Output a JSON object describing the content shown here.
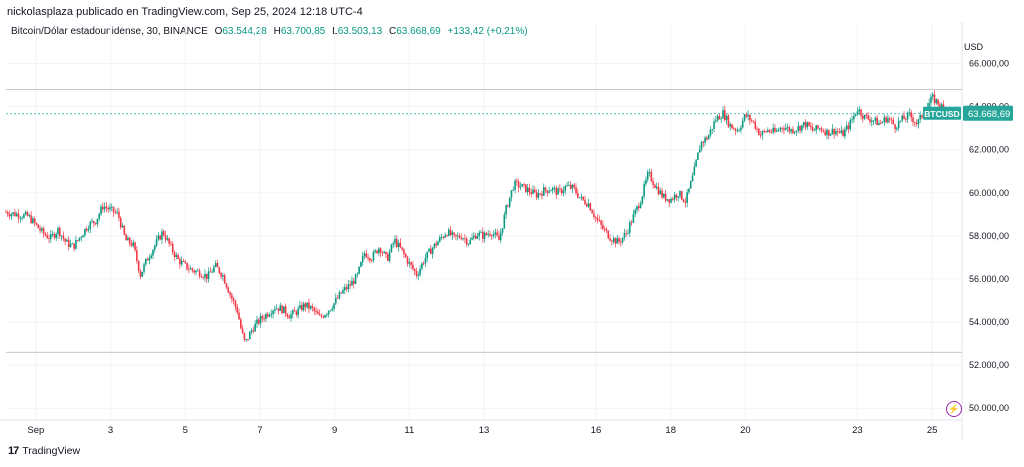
{
  "header": {
    "published": "nickolasplaza publicado en TradingView.com, Sep 25, 2024 12:18 UTC-4"
  },
  "legend": {
    "symbol": "Bitcoin/Dólar estadounidense, 30, BINANCE",
    "o_label": "O",
    "o_value": "63.544,28",
    "h_label": "H",
    "h_value": "63.700,85",
    "l_label": "L",
    "l_value": "63.503,13",
    "c_label": "C",
    "c_value": "63.668,69",
    "change": "+133,42 (+0,21%)"
  },
  "currency": "USD",
  "price_tag": {
    "symbol": "BTCUSD",
    "value": "63.668,69"
  },
  "footer": {
    "logo": "17",
    "brand": "TradingView"
  },
  "icons": {
    "bolt": "lightning-icon"
  },
  "colors": {
    "up": "#089981",
    "down": "#f23645",
    "accent": "#26a69a",
    "event": "#9c27b0"
  },
  "chart_data": {
    "type": "candlestick",
    "y_ticks": [
      50000,
      52000,
      54000,
      56000,
      58000,
      60000,
      62000,
      64000,
      66000
    ],
    "y_tick_labels": [
      "50.000,00",
      "52.000,00",
      "54.000,00",
      "56.000,00",
      "58.000,00",
      "60.000,00",
      "62.000,00",
      "64.000,00",
      "66.000,00"
    ],
    "ylim": [
      49500,
      67000
    ],
    "x_tick_labels": [
      "Sep",
      "3",
      "5",
      "7",
      "9",
      "11",
      "13",
      "16",
      "18",
      "20",
      "23",
      "25"
    ],
    "x_tick_days": [
      1,
      3,
      5,
      7,
      9,
      11,
      13,
      16,
      18,
      20,
      23,
      25
    ],
    "x_range_days": [
      0.2,
      25.8
    ],
    "hlines": [
      64800,
      63668.69,
      52600
    ],
    "close_series": [
      [
        0.2,
        59100
      ],
      [
        0.5,
        59000
      ],
      [
        0.8,
        58900
      ],
      [
        1.0,
        58500
      ],
      [
        1.2,
        58100
      ],
      [
        1.4,
        57900
      ],
      [
        1.6,
        58300
      ],
      [
        1.8,
        57700
      ],
      [
        2.0,
        57500
      ],
      [
        2.2,
        58000
      ],
      [
        2.4,
        58500
      ],
      [
        2.6,
        58700
      ],
      [
        2.8,
        59400
      ],
      [
        3.0,
        59200
      ],
      [
        3.2,
        59000
      ],
      [
        3.4,
        57800
      ],
      [
        3.6,
        57600
      ],
      [
        3.8,
        56200
      ],
      [
        4.0,
        57000
      ],
      [
        4.2,
        57600
      ],
      [
        4.4,
        58200
      ],
      [
        4.6,
        57500
      ],
      [
        4.8,
        56900
      ],
      [
        5.0,
        56600
      ],
      [
        5.2,
        56400
      ],
      [
        5.4,
        56300
      ],
      [
        5.6,
        56100
      ],
      [
        5.8,
        56600
      ],
      [
        6.0,
        56200
      ],
      [
        6.2,
        55300
      ],
      [
        6.4,
        54500
      ],
      [
        6.5,
        53600
      ],
      [
        6.6,
        53000
      ],
      [
        6.8,
        53700
      ],
      [
        7.0,
        54100
      ],
      [
        7.2,
        54400
      ],
      [
        7.4,
        54700
      ],
      [
        7.6,
        54600
      ],
      [
        7.8,
        54300
      ],
      [
        8.0,
        54500
      ],
      [
        8.2,
        54800
      ],
      [
        8.4,
        54600
      ],
      [
        8.6,
        54200
      ],
      [
        8.8,
        54500
      ],
      [
        9.0,
        54900
      ],
      [
        9.2,
        55400
      ],
      [
        9.4,
        55700
      ],
      [
        9.6,
        56100
      ],
      [
        9.8,
        57200
      ],
      [
        10.0,
        57000
      ],
      [
        10.2,
        57500
      ],
      [
        10.4,
        56900
      ],
      [
        10.6,
        57800
      ],
      [
        10.8,
        57300
      ],
      [
        11.0,
        56700
      ],
      [
        11.2,
        56200
      ],
      [
        11.4,
        56900
      ],
      [
        11.6,
        57400
      ],
      [
        11.8,
        57800
      ],
      [
        12.0,
        58200
      ],
      [
        12.2,
        57900
      ],
      [
        12.4,
        58000
      ],
      [
        12.6,
        57700
      ],
      [
        12.8,
        58100
      ],
      [
        13.0,
        58000
      ],
      [
        13.2,
        58200
      ],
      [
        13.4,
        57800
      ],
      [
        13.6,
        59300
      ],
      [
        13.8,
        60400
      ],
      [
        14.0,
        60300
      ],
      [
        14.2,
        60100
      ],
      [
        14.4,
        59900
      ],
      [
        14.6,
        60100
      ],
      [
        14.8,
        60200
      ],
      [
        15.0,
        60000
      ],
      [
        15.2,
        60300
      ],
      [
        15.4,
        60200
      ],
      [
        15.6,
        59700
      ],
      [
        15.8,
        59500
      ],
      [
        16.0,
        58800
      ],
      [
        16.2,
        58300
      ],
      [
        16.4,
        57900
      ],
      [
        16.6,
        57700
      ],
      [
        16.8,
        58100
      ],
      [
        17.0,
        58900
      ],
      [
        17.2,
        59700
      ],
      [
        17.4,
        60900
      ],
      [
        17.6,
        60300
      ],
      [
        17.8,
        59800
      ],
      [
        18.0,
        59700
      ],
      [
        18.2,
        60000
      ],
      [
        18.4,
        59600
      ],
      [
        18.6,
        60800
      ],
      [
        18.8,
        62300
      ],
      [
        19.0,
        62600
      ],
      [
        19.2,
        63400
      ],
      [
        19.4,
        63700
      ],
      [
        19.6,
        63100
      ],
      [
        19.8,
        62900
      ],
      [
        20.0,
        63600
      ],
      [
        20.2,
        63300
      ],
      [
        20.4,
        62700
      ],
      [
        20.6,
        62900
      ],
      [
        20.8,
        62800
      ],
      [
        21.0,
        63100
      ],
      [
        21.2,
        62900
      ],
      [
        21.4,
        63000
      ],
      [
        21.6,
        63200
      ],
      [
        21.8,
        62900
      ],
      [
        22.0,
        63000
      ],
      [
        22.2,
        62800
      ],
      [
        22.4,
        62900
      ],
      [
        22.6,
        62700
      ],
      [
        22.8,
        63200
      ],
      [
        23.0,
        63900
      ],
      [
        23.2,
        63500
      ],
      [
        23.4,
        63400
      ],
      [
        23.6,
        63200
      ],
      [
        23.8,
        63500
      ],
      [
        24.0,
        63100
      ],
      [
        24.2,
        63400
      ],
      [
        24.4,
        63600
      ],
      [
        24.6,
        63200
      ],
      [
        24.8,
        63800
      ],
      [
        25.0,
        64400
      ],
      [
        25.2,
        64100
      ],
      [
        25.4,
        63668.69
      ]
    ],
    "events": [
      {
        "x": 25.4,
        "label": "lightning-icon"
      }
    ]
  }
}
